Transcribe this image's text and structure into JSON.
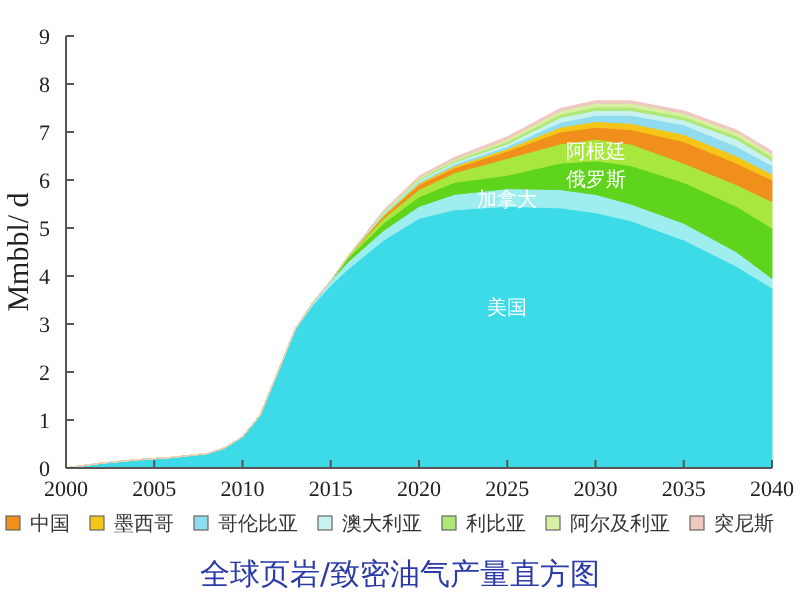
{
  "chart_data": {
    "type": "area",
    "stacked": true,
    "title": "全球页岩/致密油气产量直方图",
    "ylabel": "Mmbbl/ d",
    "x": [
      2000,
      2002,
      2004,
      2006,
      2008,
      2009,
      2010,
      2011,
      2012,
      2013,
      2014,
      2015,
      2016,
      2018,
      2020,
      2022,
      2025,
      2028,
      2030,
      2032,
      2035,
      2038,
      2040
    ],
    "xlim": [
      2000,
      2040
    ],
    "xticks": [
      2000,
      2005,
      2010,
      2015,
      2020,
      2025,
      2030,
      2035,
      2040
    ],
    "ylim": [
      0,
      9
    ],
    "yticks": [
      0,
      1,
      2,
      3,
      4,
      5,
      6,
      7,
      8,
      9
    ],
    "grid": false,
    "legend": "bottom",
    "series": [
      {
        "name": "美国",
        "color": "#3ddbe8",
        "values": [
          0,
          0.1,
          0.17,
          0.22,
          0.3,
          0.42,
          0.65,
          1.1,
          2.0,
          2.9,
          3.4,
          3.8,
          4.15,
          4.75,
          5.2,
          5.38,
          5.45,
          5.42,
          5.32,
          5.15,
          4.75,
          4.2,
          3.75
        ]
      },
      {
        "name": "加拿大",
        "color": "#9eeef0",
        "values": [
          0,
          0,
          0,
          0,
          0,
          0,
          0,
          0,
          0,
          0,
          0.05,
          0.1,
          0.15,
          0.2,
          0.25,
          0.32,
          0.37,
          0.38,
          0.38,
          0.35,
          0.35,
          0.3,
          0.2
        ]
      },
      {
        "name": "俄罗斯",
        "color": "#5fd41c",
        "values": [
          0,
          0,
          0,
          0,
          0,
          0,
          0,
          0,
          0,
          0,
          0,
          0,
          0.08,
          0.15,
          0.2,
          0.25,
          0.28,
          0.55,
          0.7,
          0.8,
          0.85,
          0.95,
          1.05
        ]
      },
      {
        "name": "阿根廷",
        "color": "#a8e83c",
        "values": [
          0,
          0,
          0,
          0,
          0,
          0,
          0,
          0,
          0,
          0,
          0,
          0,
          0.04,
          0.1,
          0.15,
          0.2,
          0.35,
          0.4,
          0.45,
          0.45,
          0.4,
          0.45,
          0.55
        ]
      },
      {
        "name": "中国",
        "color": "#f0901a",
        "values": [
          0,
          0,
          0,
          0,
          0,
          0,
          0,
          0,
          0,
          0,
          0,
          0,
          0,
          0.05,
          0.1,
          0.1,
          0.15,
          0.25,
          0.25,
          0.3,
          0.45,
          0.45,
          0.45
        ]
      },
      {
        "name": "墨西哥",
        "color": "#f5c518",
        "values": [
          0,
          0,
          0,
          0,
          0,
          0,
          0,
          0,
          0,
          0,
          0,
          0,
          0,
          0.02,
          0.03,
          0.04,
          0.05,
          0.1,
          0.12,
          0.13,
          0.15,
          0.15,
          0.12
        ]
      },
      {
        "name": "哥伦比亚",
        "color": "#8fdcf0",
        "values": [
          0,
          0,
          0,
          0,
          0,
          0,
          0,
          0,
          0,
          0,
          0,
          0,
          0,
          0.02,
          0.03,
          0.04,
          0.05,
          0.1,
          0.13,
          0.17,
          0.2,
          0.2,
          0.18
        ]
      },
      {
        "name": "澳大利亚",
        "color": "#c8f2f0",
        "values": [
          0,
          0,
          0,
          0,
          0,
          0,
          0,
          0,
          0,
          0,
          0,
          0,
          0,
          0.02,
          0.03,
          0.04,
          0.05,
          0.1,
          0.1,
          0.1,
          0.1,
          0.15,
          0.1
        ]
      },
      {
        "name": "利比亚",
        "color": "#b0e878",
        "values": [
          0,
          0,
          0,
          0,
          0,
          0,
          0,
          0,
          0,
          0,
          0,
          0,
          0,
          0.02,
          0.03,
          0.03,
          0.05,
          0.07,
          0.07,
          0.07,
          0.07,
          0.07,
          0.08
        ]
      },
      {
        "name": "阿尔及利亚",
        "color": "#d6efa0",
        "values": [
          0,
          0,
          0,
          0,
          0,
          0,
          0,
          0,
          0,
          0,
          0,
          0,
          0,
          0.02,
          0.03,
          0.03,
          0.05,
          0.07,
          0.08,
          0.08,
          0.07,
          0.07,
          0.07
        ]
      },
      {
        "name": "突尼斯",
        "color": "#f0c8c0",
        "values": [
          0,
          0,
          0,
          0,
          0,
          0,
          0,
          0,
          0,
          0,
          0,
          0,
          0,
          0.02,
          0.03,
          0.04,
          0.05,
          0.05,
          0.05,
          0.05,
          0.05,
          0.05,
          0.05
        ]
      }
    ]
  }
}
